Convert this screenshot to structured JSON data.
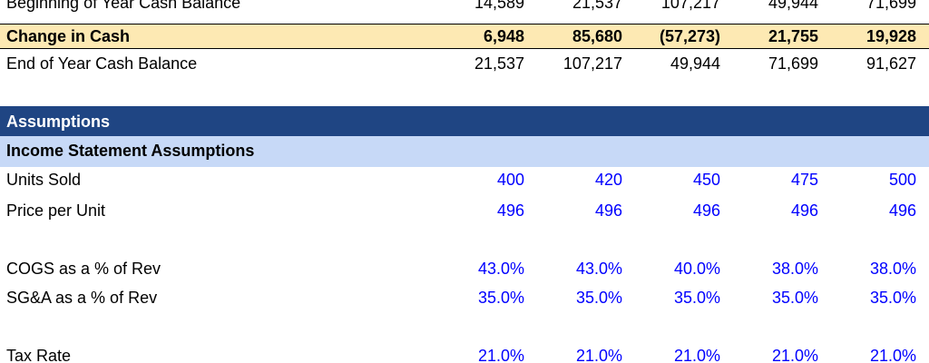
{
  "rows": {
    "beginning": {
      "label": "Beginning of Year Cash Balance",
      "values": [
        "14,589",
        "21,537",
        "107,217",
        "49,944",
        "71,699"
      ]
    },
    "change": {
      "label": "Change in Cash",
      "values": [
        "6,948",
        "85,680",
        "(57,273)",
        "21,755",
        "19,928"
      ]
    },
    "end": {
      "label": "End of Year Cash Balance",
      "values": [
        "21,537",
        "107,217",
        "49,944",
        "71,699",
        "91,627"
      ]
    },
    "assumptions_header": {
      "label": "Assumptions"
    },
    "income_statement_header": {
      "label": "Income Statement Assumptions"
    },
    "units_sold": {
      "label": "Units Sold",
      "values": [
        "400",
        "420",
        "450",
        "475",
        "500"
      ]
    },
    "price_per_unit": {
      "label": "Price per Unit",
      "values": [
        "496",
        "496",
        "496",
        "496",
        "496"
      ]
    },
    "cogs_pct": {
      "label": "COGS as a % of Rev",
      "values": [
        "43.0%",
        "43.0%",
        "40.0%",
        "38.0%",
        "38.0%"
      ]
    },
    "sga_pct": {
      "label": "SG&A as a % of Rev",
      "values": [
        "35.0%",
        "35.0%",
        "35.0%",
        "35.0%",
        "35.0%"
      ]
    },
    "tax_rate": {
      "label": "Tax Rate",
      "values": [
        "21.0%",
        "21.0%",
        "21.0%",
        "21.0%",
        "21.0%"
      ]
    }
  },
  "colors": {
    "highlight_row": "#fde9b3",
    "section_header": "#1f4583",
    "subsection_header": "#c7d9f7",
    "input_value": "#0000ff"
  }
}
